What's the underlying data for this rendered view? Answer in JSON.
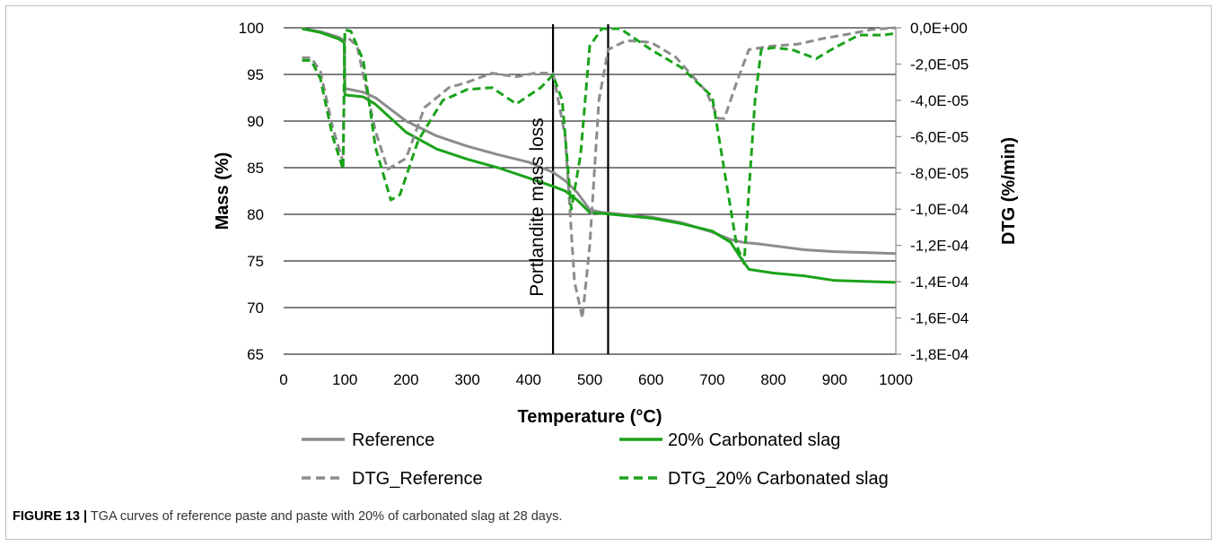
{
  "caption": {
    "label": "FIGURE 13 |",
    "text": "TGA curves of reference paste and paste with 20% of carbonated slag at 28 days."
  },
  "colors": {
    "reference": "#8c8c8c",
    "carbonated": "#1aa31a",
    "grid": "#000000",
    "axis": "#8c8c8c"
  },
  "chart_data": {
    "type": "line",
    "xlabel": "Temperature (°C)",
    "ylabel": "Mass (%)",
    "y2label": "DTG (%/min)",
    "xlim": [
      0,
      1000
    ],
    "ylim": [
      65,
      100
    ],
    "y2lim": [
      -0.00018,
      0
    ],
    "x_ticks": [
      "0",
      "100",
      "200",
      "300",
      "400",
      "500",
      "600",
      "700",
      "800",
      "900",
      "1000"
    ],
    "y_ticks": [
      "65",
      "70",
      "75",
      "80",
      "85",
      "90",
      "95",
      "100"
    ],
    "y2_ticks": [
      "-1,8E-04",
      "-1,6E-04",
      "-1,4E-04",
      "-1,2E-04",
      "-1,0E-04",
      "-8,0E-05",
      "-6,0E-05",
      "-4,0E-05",
      "-2,0E-05",
      "0,0E+00"
    ],
    "grid": "horizontal",
    "legend_position": "bottom",
    "annotations": [
      {
        "text": "Portlandite mass loss",
        "x_range": [
          440,
          530
        ]
      }
    ],
    "series": [
      {
        "name": "Reference",
        "axis": "left",
        "style": "solid",
        "color": "#8c8c8c",
        "points": [
          [
            30,
            99.9
          ],
          [
            60,
            99.6
          ],
          [
            90,
            99.0
          ],
          [
            99,
            98.6
          ],
          [
            100,
            93.5
          ],
          [
            130,
            93.1
          ],
          [
            150,
            92.5
          ],
          [
            200,
            90.0
          ],
          [
            250,
            88.4
          ],
          [
            300,
            87.3
          ],
          [
            350,
            86.4
          ],
          [
            400,
            85.6
          ],
          [
            440,
            84.5
          ],
          [
            460,
            83.6
          ],
          [
            480,
            82.3
          ],
          [
            500,
            80.5
          ],
          [
            520,
            80.2
          ],
          [
            600,
            79.7
          ],
          [
            650,
            79.1
          ],
          [
            700,
            78.1
          ],
          [
            730,
            77.3
          ],
          [
            750,
            77.0
          ],
          [
            780,
            76.8
          ],
          [
            850,
            76.2
          ],
          [
            900,
            76.0
          ],
          [
            1000,
            75.8
          ]
        ]
      },
      {
        "name": "20% Carbonated slag",
        "axis": "left",
        "style": "solid",
        "color": "#1aa31a",
        "points": [
          [
            30,
            99.9
          ],
          [
            60,
            99.5
          ],
          [
            90,
            98.8
          ],
          [
            99,
            98.4
          ],
          [
            100,
            92.8
          ],
          [
            130,
            92.6
          ],
          [
            150,
            91.8
          ],
          [
            200,
            88.8
          ],
          [
            250,
            87.0
          ],
          [
            300,
            85.9
          ],
          [
            350,
            85.0
          ],
          [
            400,
            83.9
          ],
          [
            440,
            83.0
          ],
          [
            460,
            82.5
          ],
          [
            480,
            81.5
          ],
          [
            500,
            80.2
          ],
          [
            520,
            80.1
          ],
          [
            600,
            79.6
          ],
          [
            650,
            79.0
          ],
          [
            700,
            78.2
          ],
          [
            730,
            77.0
          ],
          [
            745,
            75.5
          ],
          [
            760,
            74.1
          ],
          [
            800,
            73.7
          ],
          [
            850,
            73.4
          ],
          [
            900,
            72.9
          ],
          [
            1000,
            72.7
          ]
        ]
      },
      {
        "name": "DTG_Reference",
        "axis": "right",
        "style": "dashed",
        "color": "#8c8c8c",
        "points": [
          [
            30,
            -1.65e-05
          ],
          [
            45,
            -1.65e-05
          ],
          [
            60,
            -2.4e-05
          ],
          [
            80,
            -5.5e-05
          ],
          [
            97,
            -7.4e-05
          ],
          [
            100,
            -4e-06
          ],
          [
            120,
            -1e-05
          ],
          [
            150,
            -5.7e-05
          ],
          [
            170,
            -7.8e-05
          ],
          [
            200,
            -7.2e-05
          ],
          [
            230,
            -4.4e-05
          ],
          [
            270,
            -3.3e-05
          ],
          [
            300,
            -3e-05
          ],
          [
            340,
            -2.5e-05
          ],
          [
            380,
            -2.7e-05
          ],
          [
            410,
            -2.5e-05
          ],
          [
            440,
            -2.5e-05
          ],
          [
            460,
            -6e-05
          ],
          [
            475,
            -0.00014
          ],
          [
            488,
            -0.00016
          ],
          [
            500,
            -0.00012
          ],
          [
            515,
            -4e-05
          ],
          [
            530,
            -1.2e-05
          ],
          [
            560,
            -7e-06
          ],
          [
            600,
            -8e-06
          ],
          [
            640,
            -1.6e-05
          ],
          [
            690,
            -3.5e-05
          ],
          [
            710,
            -5e-05
          ],
          [
            720,
            -5e-05
          ],
          [
            740,
            -3e-05
          ],
          [
            760,
            -1.2e-05
          ],
          [
            800,
            -1e-05
          ],
          [
            840,
            -9e-06
          ],
          [
            880,
            -6e-06
          ],
          [
            930,
            -3e-06
          ],
          [
            960,
            -1e-06
          ],
          [
            1000,
            0.0
          ]
        ]
      },
      {
        "name": "DTG_20% Carbonated slag",
        "axis": "right",
        "style": "dashed",
        "color": "#1aa31a",
        "points": [
          [
            30,
            -1.8e-05
          ],
          [
            45,
            -1.8e-05
          ],
          [
            60,
            -2.8e-05
          ],
          [
            80,
            -6e-05
          ],
          [
            97,
            -7.8e-05
          ],
          [
            100,
            -1e-06
          ],
          [
            110,
            -2e-06
          ],
          [
            130,
            -1.8e-05
          ],
          [
            150,
            -6.6e-05
          ],
          [
            175,
            -9.5e-05
          ],
          [
            190,
            -9.2e-05
          ],
          [
            220,
            -6.2e-05
          ],
          [
            260,
            -4e-05
          ],
          [
            300,
            -3.4e-05
          ],
          [
            340,
            -3.3e-05
          ],
          [
            380,
            -4.2e-05
          ],
          [
            420,
            -3.3e-05
          ],
          [
            440,
            -2.6e-05
          ],
          [
            455,
            -4e-05
          ],
          [
            470,
            -0.0001
          ],
          [
            485,
            -7e-05
          ],
          [
            500,
            -1e-05
          ],
          [
            520,
            -5e-07
          ],
          [
            550,
            -5e-07
          ],
          [
            600,
            -1.2e-05
          ],
          [
            650,
            -2.2e-05
          ],
          [
            700,
            -3.8e-05
          ],
          [
            740,
            -0.00012
          ],
          [
            752,
            -0.00013
          ],
          [
            760,
            -9e-05
          ],
          [
            770,
            -4e-05
          ],
          [
            780,
            -1.2e-05
          ],
          [
            800,
            -1.1e-05
          ],
          [
            830,
            -1.2e-05
          ],
          [
            870,
            -1.7e-05
          ],
          [
            900,
            -1.1e-05
          ],
          [
            940,
            -4e-06
          ],
          [
            980,
            -4e-06
          ],
          [
            1000,
            -3e-06
          ]
        ]
      }
    ]
  }
}
